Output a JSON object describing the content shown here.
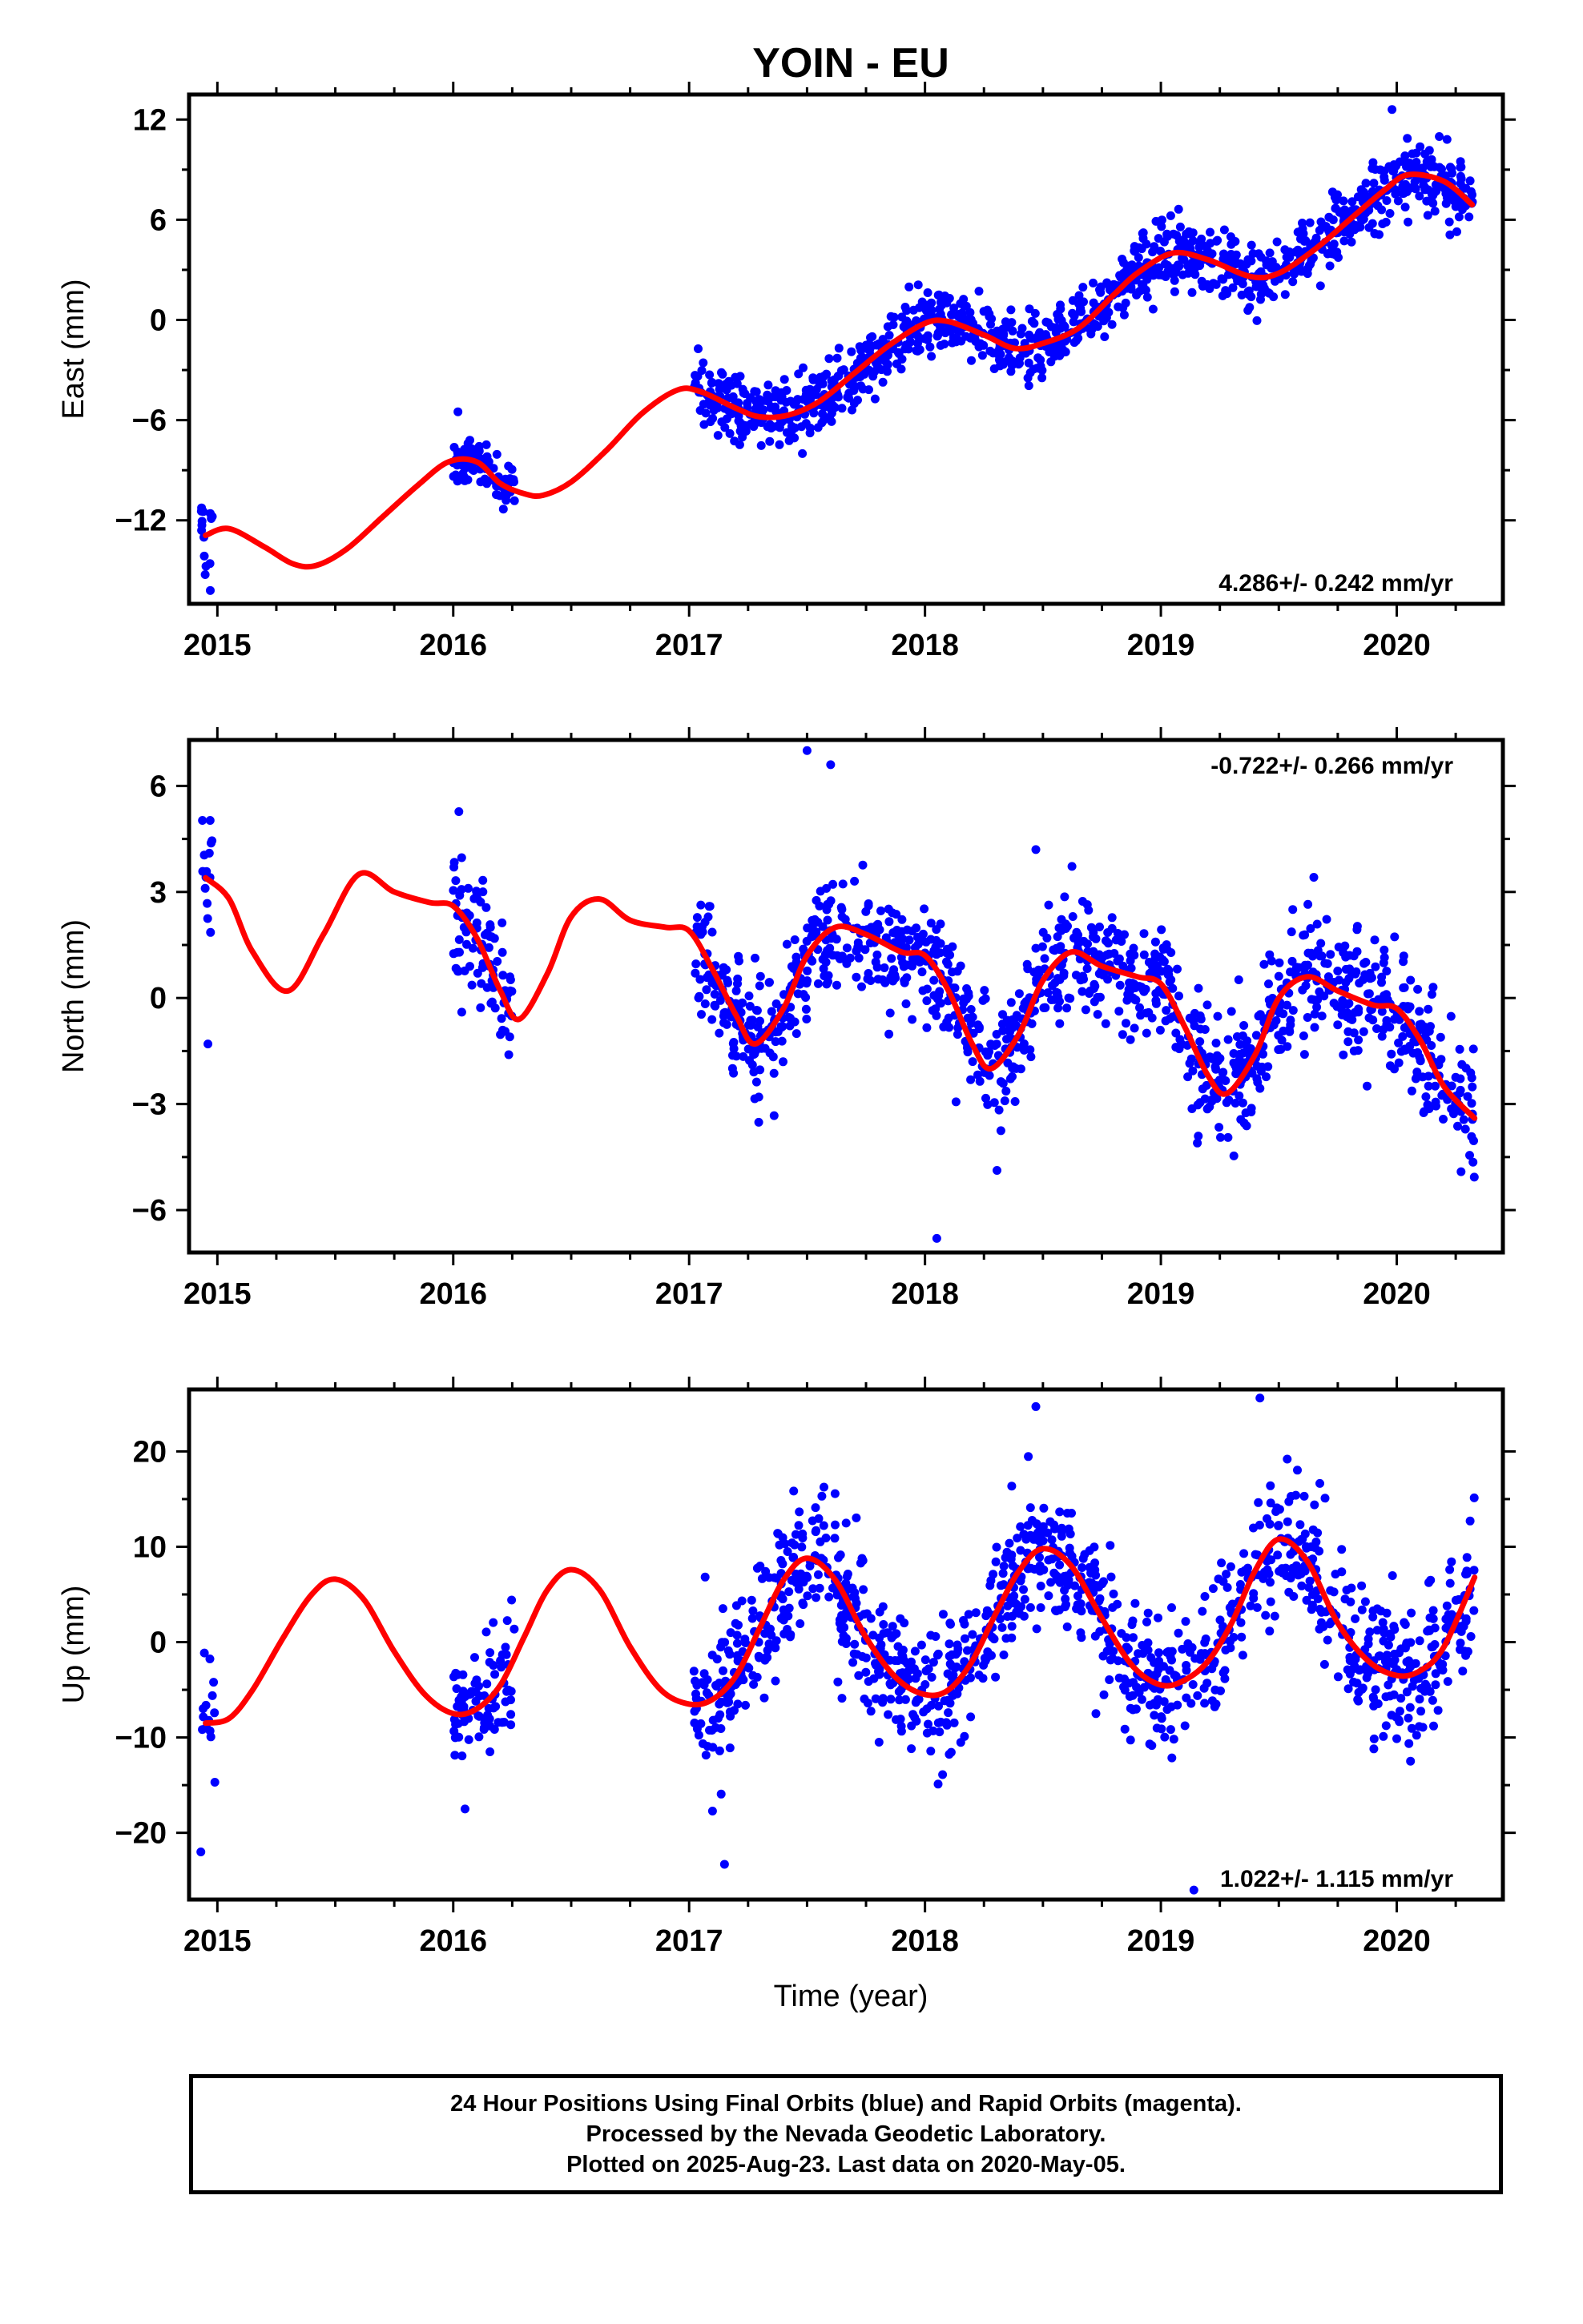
{
  "title": "YOIN - EU",
  "xlabel": "Time (year)",
  "footer": {
    "line1": "24 Hour Positions Using Final Orbits (blue) and Rapid Orbits (magenta).",
    "line2": "Processed by the Nevada Geodetic Laboratory.",
    "line3": "Plotted on 2025-Aug-23. Last data on 2020-May-05."
  },
  "colors": {
    "points": "#0000ff",
    "fit": "#ff0000",
    "axes": "#000000"
  },
  "chart_data": [
    {
      "type": "scatter",
      "ylabel": "East (mm)",
      "rate_text": "4.286+/- 0.242 mm/yr",
      "rate_position": "bottom-right",
      "xlim": [
        2014.88,
        2020.45
      ],
      "ylim": [
        -17,
        13.5
      ],
      "xticks": [
        2015,
        2016,
        2017,
        2018,
        2019,
        2020
      ],
      "yticks": [
        12,
        6,
        0,
        -6,
        -12
      ],
      "ytick_labels": [
        "12",
        "6",
        "0",
        "−6",
        "−12"
      ],
      "grid": false,
      "fit": {
        "name": "fit",
        "x": [
          2014.95,
          2015.05,
          2015.2,
          2015.32,
          2015.42,
          2015.55,
          2015.7,
          2015.85,
          2015.98,
          2016.1,
          2016.2,
          2016.3,
          2016.38,
          2016.5,
          2016.65,
          2016.8,
          2016.95,
          2017.05,
          2017.2,
          2017.3,
          2017.42,
          2017.55,
          2017.7,
          2017.85,
          2018.0,
          2018.1,
          2018.25,
          2018.38,
          2018.5,
          2018.65,
          2018.8,
          2018.9,
          2019.05,
          2019.2,
          2019.38,
          2019.5,
          2019.65,
          2019.8,
          2019.95,
          2020.05,
          2020.2,
          2020.32
        ],
        "y": [
          -12.9,
          -12.5,
          -13.6,
          -14.6,
          -14.7,
          -13.7,
          -11.8,
          -9.9,
          -8.5,
          -8.5,
          -9.8,
          -10.4,
          -10.5,
          -9.7,
          -7.8,
          -5.6,
          -4.2,
          -4.3,
          -5.3,
          -5.8,
          -5.7,
          -4.9,
          -3.2,
          -1.5,
          -0.2,
          -0.1,
          -0.9,
          -1.7,
          -1.4,
          -0.5,
          1.5,
          2.8,
          4.0,
          3.6,
          2.6,
          2.8,
          4.2,
          6.0,
          7.8,
          8.7,
          8.3,
          6.9
        ]
      },
      "point_groups": [
        {
          "x0": 2014.93,
          "x1": 2014.99,
          "n": 14,
          "seed": 11,
          "trend": "fit",
          "scatter": 1.3
        },
        {
          "x0": 2016.0,
          "x1": 2016.26,
          "n": 90,
          "seed": 12,
          "trend": "fit",
          "scatter": 0.8
        },
        {
          "x0": 2017.02,
          "x1": 2020.33,
          "n": 1150,
          "seed": 13,
          "trend": "fit",
          "scatter": 1.0
        }
      ],
      "outliers": [
        {
          "x": 2016.02,
          "y": -5.5
        },
        {
          "x": 2019.98,
          "y": 12.6
        },
        {
          "x": 2014.97,
          "y": -16.2
        }
      ]
    },
    {
      "type": "scatter",
      "ylabel": "North (mm)",
      "rate_text": "-0.722+/- 0.266 mm/yr",
      "rate_position": "top-right",
      "xlim": [
        2014.88,
        2020.45
      ],
      "ylim": [
        -7.2,
        7.3
      ],
      "xticks": [
        2015,
        2016,
        2017,
        2018,
        2019,
        2020
      ],
      "yticks": [
        6,
        3,
        0,
        -3,
        -6
      ],
      "ytick_labels": [
        "6",
        "3",
        "0",
        "−3",
        "−6"
      ],
      "grid": false,
      "fit": {
        "name": "fit",
        "x": [
          2014.95,
          2015.05,
          2015.15,
          2015.3,
          2015.45,
          2015.6,
          2015.75,
          2015.9,
          2016.0,
          2016.1,
          2016.2,
          2016.28,
          2016.4,
          2016.5,
          2016.62,
          2016.75,
          2016.9,
          2017.0,
          2017.1,
          2017.2,
          2017.28,
          2017.4,
          2017.5,
          2017.62,
          2017.75,
          2017.9,
          2018.0,
          2018.1,
          2018.2,
          2018.28,
          2018.4,
          2018.5,
          2018.62,
          2018.75,
          2018.9,
          2019.0,
          2019.1,
          2019.2,
          2019.28,
          2019.4,
          2019.5,
          2019.62,
          2019.75,
          2019.9,
          2020.0,
          2020.1,
          2020.2,
          2020.33
        ],
        "y": [
          3.4,
          2.8,
          1.3,
          0.2,
          1.8,
          3.5,
          3.0,
          2.7,
          2.6,
          1.7,
          0.2,
          -0.6,
          0.7,
          2.3,
          2.8,
          2.2,
          2.0,
          1.9,
          0.8,
          -0.5,
          -1.3,
          -0.3,
          1.2,
          2.0,
          1.8,
          1.3,
          1.2,
          0.2,
          -1.3,
          -2.0,
          -1.0,
          0.5,
          1.3,
          0.9,
          0.6,
          0.4,
          -0.8,
          -2.2,
          -2.7,
          -1.6,
          0.0,
          0.6,
          0.2,
          -0.2,
          -0.3,
          -1.2,
          -2.5,
          -3.4
        ]
      },
      "point_groups": [
        {
          "x0": 2014.93,
          "x1": 2014.99,
          "n": 14,
          "seed": 21,
          "trend": "fit",
          "scatter": 1.1
        },
        {
          "x0": 2016.0,
          "x1": 2016.26,
          "n": 90,
          "seed": 22,
          "trend": "fit",
          "scatter": 0.9
        },
        {
          "x0": 2017.02,
          "x1": 2020.33,
          "n": 1150,
          "seed": 23,
          "trend": "fit",
          "scatter": 0.85
        }
      ],
      "outliers": [
        {
          "x": 2017.5,
          "y": 7.0
        },
        {
          "x": 2018.05,
          "y": -6.8
        },
        {
          "x": 2017.6,
          "y": 6.6
        },
        {
          "x": 2018.47,
          "y": 4.2
        },
        {
          "x": 2014.96,
          "y": -1.3
        }
      ]
    },
    {
      "type": "scatter",
      "ylabel": "Up (mm)",
      "rate_text": "1.022+/- 1.115 mm/yr",
      "rate_position": "bottom-right",
      "xlim": [
        2014.88,
        2020.45
      ],
      "ylim": [
        -27,
        26.5
      ],
      "xticks": [
        2015,
        2016,
        2017,
        2018,
        2019,
        2020
      ],
      "yticks": [
        20,
        10,
        0,
        -10,
        -20
      ],
      "ytick_labels": [
        "20",
        "10",
        "0",
        "−10",
        "−20"
      ],
      "grid": false,
      "fit": {
        "name": "fit",
        "x": [
          2014.95,
          2015.05,
          2015.15,
          2015.28,
          2015.4,
          2015.5,
          2015.62,
          2015.75,
          2015.88,
          2016.0,
          2016.1,
          2016.2,
          2016.3,
          2016.4,
          2016.5,
          2016.62,
          2016.75,
          2016.88,
          2017.0,
          2017.1,
          2017.2,
          2017.3,
          2017.4,
          2017.5,
          2017.62,
          2017.75,
          2017.88,
          2018.0,
          2018.1,
          2018.2,
          2018.3,
          2018.4,
          2018.5,
          2018.62,
          2018.75,
          2018.88,
          2019.0,
          2019.1,
          2019.2,
          2019.3,
          2019.4,
          2019.5,
          2019.62,
          2019.75,
          2019.88,
          2020.0,
          2020.1,
          2020.2,
          2020.33
        ],
        "y": [
          -8.5,
          -8.0,
          -5.0,
          0.5,
          5.0,
          6.6,
          4.5,
          -1.0,
          -5.5,
          -7.5,
          -7.0,
          -4.5,
          0.5,
          5.5,
          7.6,
          5.5,
          -0.5,
          -5.0,
          -6.5,
          -6.0,
          -3.5,
          1.5,
          6.5,
          8.8,
          6.5,
          0.5,
          -3.8,
          -5.5,
          -5.0,
          -2.0,
          3.0,
          7.5,
          9.8,
          8.0,
          2.5,
          -2.5,
          -4.5,
          -4.0,
          -2.0,
          2.0,
          7.5,
          10.8,
          8.5,
          2.0,
          -2.0,
          -3.5,
          -3.0,
          -0.5,
          6.8
        ]
      },
      "point_groups": [
        {
          "x0": 2014.93,
          "x1": 2014.99,
          "n": 14,
          "seed": 31,
          "trend": "fit",
          "scatter": 3.5
        },
        {
          "x0": 2016.0,
          "x1": 2016.26,
          "n": 90,
          "seed": 32,
          "trend": "fit",
          "scatter": 3.6
        },
        {
          "x0": 2017.02,
          "x1": 2020.33,
          "n": 1150,
          "seed": 33,
          "trend": "fit",
          "scatter": 3.6
        }
      ],
      "outliers": [
        {
          "x": 2014.93,
          "y": -22.0
        },
        {
          "x": 2017.15,
          "y": -23.3
        },
        {
          "x": 2018.47,
          "y": 24.7
        },
        {
          "x": 2019.42,
          "y": 25.6
        },
        {
          "x": 2019.14,
          "y": -26.0
        },
        {
          "x": 2016.05,
          "y": -17.5
        }
      ]
    }
  ]
}
